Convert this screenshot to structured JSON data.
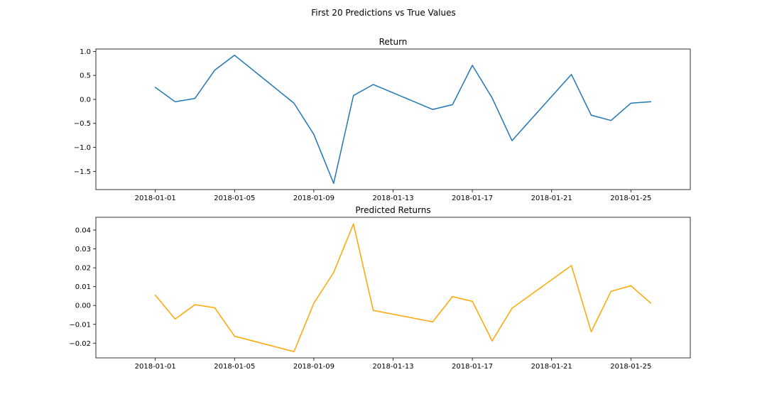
{
  "figure": {
    "suptitle": "First 20 Predictions vs True Values"
  },
  "chart_data": [
    {
      "type": "line",
      "title": "Return",
      "xlabel": "",
      "ylabel": "",
      "x_type": "date",
      "x": [
        "2018-01-01",
        "2018-01-02",
        "2018-01-03",
        "2018-01-04",
        "2018-01-05",
        "2018-01-08",
        "2018-01-09",
        "2018-01-10",
        "2018-01-11",
        "2018-01-12",
        "2018-01-15",
        "2018-01-16",
        "2018-01-17",
        "2018-01-18",
        "2018-01-19",
        "2018-01-22",
        "2018-01-23",
        "2018-01-24",
        "2018-01-25",
        "2018-01-26"
      ],
      "series": [
        {
          "values": [
            0.25,
            -0.05,
            0.02,
            0.61,
            0.92,
            -0.08,
            -0.73,
            -1.75,
            0.08,
            0.31,
            -0.21,
            -0.11,
            0.71,
            0.03,
            -0.86,
            0.52,
            -0.33,
            -0.44,
            -0.08,
            -0.05
          ],
          "color": "#1f77b4"
        }
      ],
      "xlim": [
        "2017-12-29",
        "2018-01-28"
      ],
      "ylim": [
        -1.88,
        1.05
      ],
      "xticks": [
        "2018-01-01",
        "2018-01-05",
        "2018-01-09",
        "2018-01-13",
        "2018-01-17",
        "2018-01-21",
        "2018-01-25"
      ],
      "yticks": [
        1.0,
        0.5,
        0.0,
        -0.5,
        -1.0,
        -1.5
      ],
      "ytick_labels": [
        "1.0",
        "0.5",
        "0.0",
        "−0.5",
        "−1.0",
        "−1.5"
      ],
      "grid": false,
      "legend": "none"
    },
    {
      "type": "line",
      "title": "Predicted Returns",
      "xlabel": "",
      "ylabel": "",
      "x_type": "date",
      "x": [
        "2018-01-01",
        "2018-01-02",
        "2018-01-03",
        "2018-01-04",
        "2018-01-05",
        "2018-01-08",
        "2018-01-09",
        "2018-01-10",
        "2018-01-11",
        "2018-01-12",
        "2018-01-15",
        "2018-01-16",
        "2018-01-17",
        "2018-01-18",
        "2018-01-19",
        "2018-01-22",
        "2018-01-23",
        "2018-01-24",
        "2018-01-25",
        "2018-01-26"
      ],
      "series": [
        {
          "values": [
            0.0055,
            -0.0072,
            0.0004,
            -0.0012,
            -0.0163,
            -0.0245,
            0.0012,
            0.0175,
            0.0433,
            -0.0026,
            -0.0087,
            0.0047,
            0.0022,
            -0.0188,
            -0.0015,
            0.0212,
            -0.0139,
            0.0075,
            0.0105,
            0.0013
          ],
          "color": "#ffa500"
        }
      ],
      "xlim": [
        "2017-12-29",
        "2018-01-28"
      ],
      "ylim": [
        -0.0278,
        0.0468
      ],
      "xticks": [
        "2018-01-01",
        "2018-01-05",
        "2018-01-09",
        "2018-01-13",
        "2018-01-17",
        "2018-01-21",
        "2018-01-25"
      ],
      "yticks": [
        0.04,
        0.03,
        0.02,
        0.01,
        0.0,
        -0.01,
        -0.02
      ],
      "ytick_labels": [
        "0.04",
        "0.03",
        "0.02",
        "0.01",
        "0.00",
        "−0.01",
        "−0.02"
      ],
      "grid": false,
      "legend": "none"
    }
  ]
}
